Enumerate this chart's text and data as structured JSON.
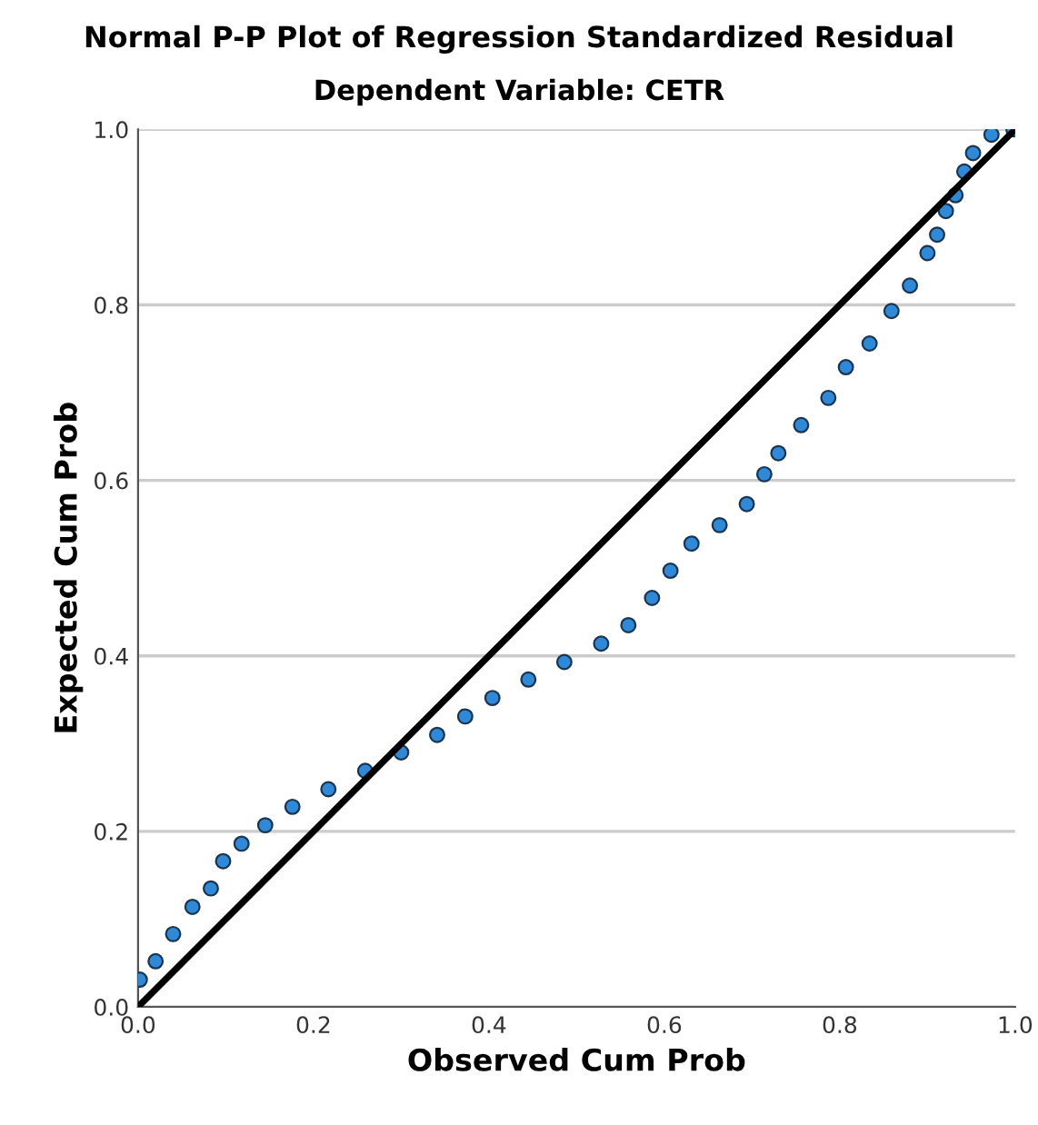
{
  "chart_data": {
    "type": "scatter",
    "title": "Normal P-P Plot of Regression Standardized Residual",
    "subtitle": "Dependent Variable: CETR",
    "xlabel": "Observed Cum Prob",
    "ylabel": "Expected Cum Prob",
    "xlim": [
      0,
      1
    ],
    "ylim": [
      0,
      1
    ],
    "xticks": [
      {
        "value": 0,
        "label": "0.0"
      },
      0.2,
      0.4,
      0.6,
      0.8,
      {
        "value": 1,
        "label": "1.0"
      }
    ],
    "yticks": [
      {
        "value": 0,
        "label": "0.0"
      },
      0.2,
      0.4,
      0.6,
      0.8,
      {
        "value": 1,
        "label": "1.0"
      }
    ],
    "grid": "y",
    "marker": "circle",
    "series": [
      {
        "color": "#2e8ad8",
        "x": [
          0.002,
          0.02,
          0.04,
          0.062,
          0.083,
          0.097,
          0.118,
          0.145,
          0.176,
          0.217,
          0.259,
          0.3,
          0.341,
          0.373,
          0.404,
          0.445,
          0.486,
          0.528,
          0.559,
          0.586,
          0.607,
          0.631,
          0.663,
          0.694,
          0.714,
          0.73,
          0.756,
          0.787,
          0.807,
          0.834,
          0.859,
          0.88,
          0.9,
          0.911,
          0.921,
          0.932,
          0.942,
          0.952,
          0.973,
          0.998
        ],
        "values": [
          0.031,
          0.052,
          0.083,
          0.114,
          0.135,
          0.166,
          0.186,
          0.207,
          0.228,
          0.248,
          0.269,
          0.29,
          0.31,
          0.331,
          0.352,
          0.373,
          0.393,
          0.414,
          0.435,
          0.466,
          0.497,
          0.528,
          0.549,
          0.573,
          0.607,
          0.631,
          0.663,
          0.694,
          0.729,
          0.756,
          0.793,
          0.822,
          0.859,
          0.88,
          0.907,
          0.925,
          0.952,
          0.973,
          0.994,
          1.0
        ]
      },
      {
        "type": "line",
        "marker": "none",
        "color": "#000000",
        "x": [
          0,
          1
        ],
        "values": [
          0,
          1
        ]
      }
    ]
  }
}
